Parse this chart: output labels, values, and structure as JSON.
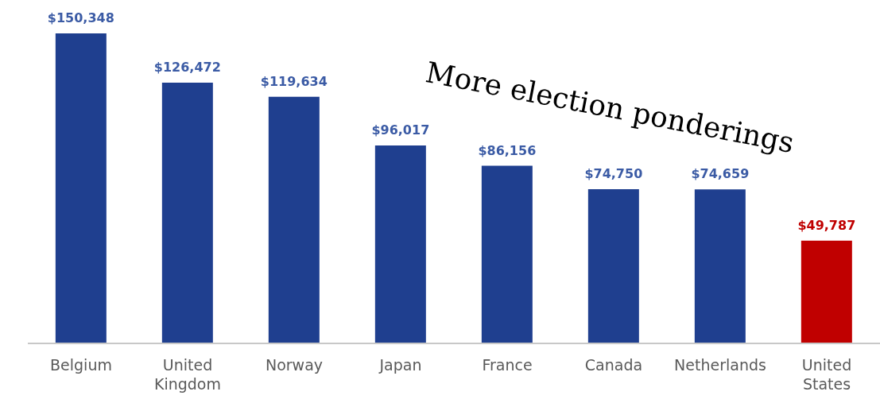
{
  "chart_data": {
    "type": "bar",
    "categories": [
      "Belgium",
      "United Kingdom",
      "Norway",
      "Japan",
      "France",
      "Canada",
      "Netherlands",
      "United States"
    ],
    "values": [
      150348,
      126472,
      119634,
      96017,
      86156,
      74750,
      74659,
      49787
    ],
    "colors": [
      "#1f3f8f",
      "#1f3f8f",
      "#1f3f8f",
      "#1f3f8f",
      "#1f3f8f",
      "#1f3f8f",
      "#1f3f8f",
      "#c00000"
    ],
    "value_labels": [
      "$150,348",
      "$126,472",
      "$119,634",
      "$96,017",
      "$86,156",
      "$74,750",
      "$74,659",
      "$49,787"
    ],
    "annotations": [
      "More election ponderings"
    ]
  }
}
